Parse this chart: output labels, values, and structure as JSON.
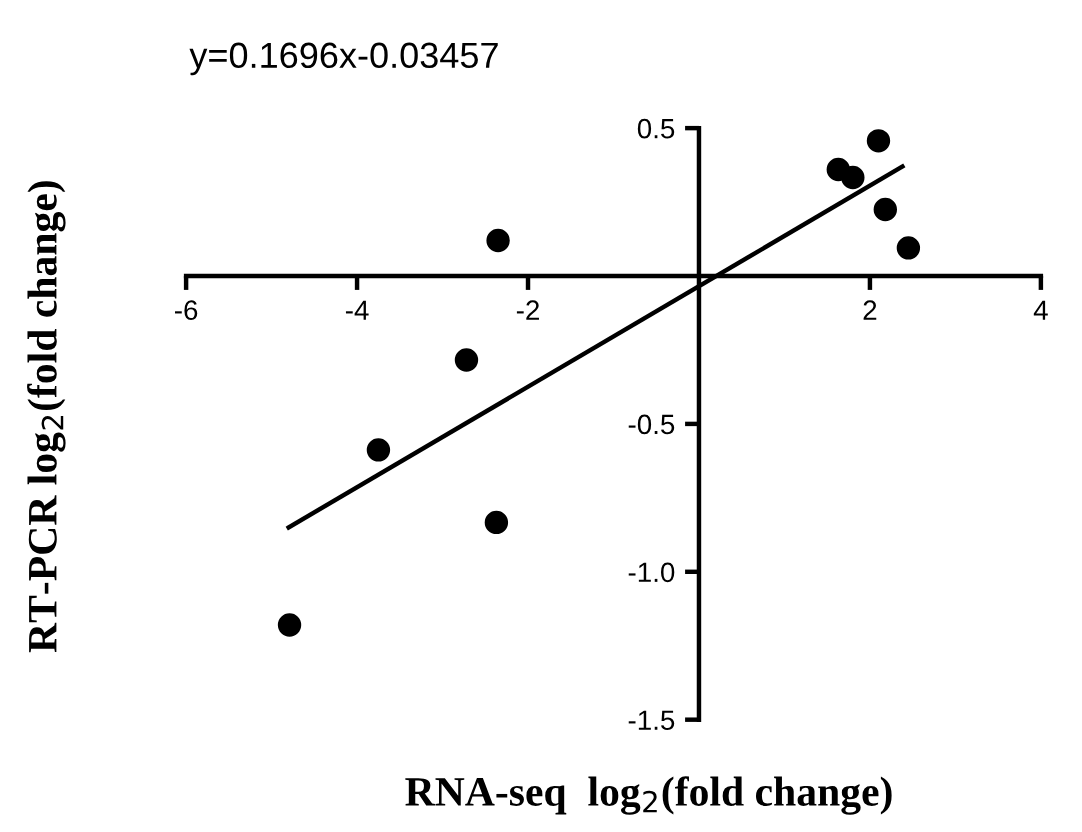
{
  "chart_data": {
    "type": "scatter",
    "annotations": [
      "y=0.1696x-0.03457"
    ],
    "xlabel": "RNA-seq  log$_{2}$(fold change)",
    "ylabel": "RT-PCR log$_{2}$(fold change)",
    "xlim": [
      -6,
      4
    ],
    "xticks": [
      -6,
      -4,
      -2,
      2,
      4
    ],
    "ylim": [
      -1.5,
      0.5
    ],
    "yticks": [
      0.5,
      -0.5,
      {
        "value": -1.0,
        "label": "-1.0"
      },
      -1.5
    ],
    "grid": false,
    "marker": "circle",
    "series": [
      {
        "color": "#000000",
        "x": [
          2.1,
          1.63,
          1.8,
          2.18,
          2.45,
          -2.35,
          -2.72,
          -3.75,
          -2.37,
          -4.79
        ],
        "values": [
          0.457,
          0.36,
          0.333,
          0.225,
          0.095,
          0.12,
          -0.284,
          -0.588,
          -0.833,
          -1.18
        ]
      },
      {
        "type": "line",
        "color": "#000000",
        "line_style": "solid",
        "marker": "none",
        "x": [
          -4.8,
          2.38
        ],
        "values": [
          -0.85,
          0.37
        ]
      }
    ]
  }
}
